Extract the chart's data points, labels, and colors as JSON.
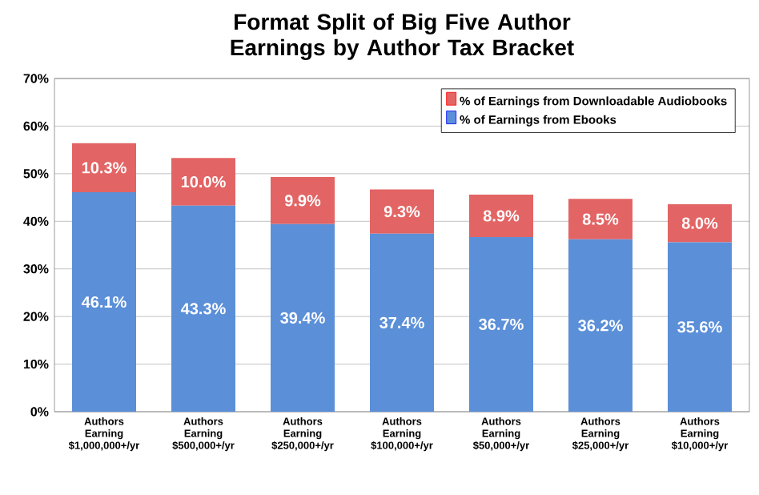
{
  "chart_data": {
    "type": "bar",
    "stacked": true,
    "title": "Format Split of Big Five Author Earnings by Author Tax Bracket",
    "categories": [
      "Authors Earning $1,000,000+/yr",
      "Authors Earning $500,000+/yr",
      "Authors Earning $250,000+/yr",
      "Authors Earning $100,000+/yr",
      "Authors Earning $50,000+/yr",
      "Authors Earning $25,000+/yr",
      "Authors Earning $10,000+/yr"
    ],
    "series": [
      {
        "name": "% of Earnings from Ebooks",
        "color": "#5b8fd8",
        "values": [
          46.1,
          43.3,
          39.4,
          37.4,
          36.7,
          36.2,
          35.6
        ],
        "value_labels": [
          "46.1%",
          "43.3%",
          "39.4%",
          "37.4%",
          "36.7%",
          "36.2%",
          "35.6%"
        ]
      },
      {
        "name": "% of Earnings from Downloadable Audiobooks",
        "color": "#e36464",
        "values": [
          10.3,
          10.0,
          9.9,
          9.3,
          8.9,
          8.5,
          8.0
        ],
        "value_labels": [
          "10.3%",
          "10.0%",
          "9.9%",
          "9.3%",
          "8.9%",
          "8.5%",
          "8.0%"
        ]
      }
    ],
    "ylim": [
      0,
      70
    ],
    "yticks": [
      {
        "value": 0,
        "label": "0%"
      },
      {
        "value": 10,
        "label": "10%"
      },
      {
        "value": 20,
        "label": "20%"
      },
      {
        "value": 30,
        "label": "30%"
      },
      {
        "value": 40,
        "label": "40%"
      },
      {
        "value": 50,
        "label": "50%"
      },
      {
        "value": 60,
        "label": "60%"
      },
      {
        "value": 70,
        "label": "70%"
      }
    ],
    "grid": "y",
    "legend": "top right"
  }
}
